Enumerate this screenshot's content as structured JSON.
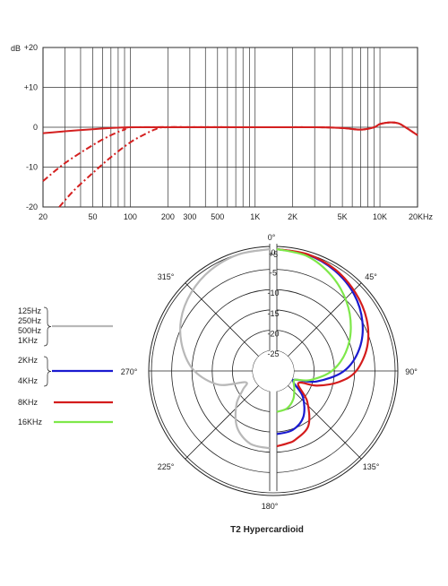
{
  "chart_data": [
    {
      "type": "line",
      "title": "",
      "ylabel_unit": "dB",
      "x_scale": "log",
      "xlim": [
        20,
        20000
      ],
      "ylim": [
        -20,
        20
      ],
      "x_ticks": [
        {
          "v": 20,
          "label": "20"
        },
        {
          "v": 50,
          "label": "50"
        },
        {
          "v": 100,
          "label": "100"
        },
        {
          "v": 200,
          "label": "200"
        },
        {
          "v": 300,
          "label": "300"
        },
        {
          "v": 500,
          "label": "500"
        },
        {
          "v": 1000,
          "label": "1K"
        },
        {
          "v": 2000,
          "label": "2K"
        },
        {
          "v": 5000,
          "label": "5K"
        },
        {
          "v": 10000,
          "label": "10K"
        },
        {
          "v": 20000,
          "label": "20KHz"
        }
      ],
      "y_ticks": [
        {
          "v": 20,
          "label": "+20"
        },
        {
          "v": 10,
          "label": "+10"
        },
        {
          "v": 0,
          "label": "0"
        },
        {
          "v": -10,
          "label": "-10"
        },
        {
          "v": -20,
          "label": "-20"
        }
      ],
      "grid": true,
      "series": [
        {
          "style": "solid",
          "color": "#d42020",
          "x": [
            20,
            30,
            50,
            70,
            100,
            200,
            1000,
            3000,
            5000,
            7000,
            9000,
            10000,
            12000,
            14000,
            16000,
            20000
          ],
          "y": [
            -1.5,
            -1.0,
            -0.5,
            -0.2,
            0,
            0,
            0,
            0,
            -0.2,
            -0.6,
            0,
            0.8,
            1.2,
            1.0,
            0,
            -2
          ]
        },
        {
          "style": "dashed",
          "color": "#d42020",
          "x": [
            20,
            30,
            50,
            70,
            90,
            110,
            1000,
            3000,
            5000,
            7000,
            9000,
            10000,
            12000,
            14000,
            16000,
            20000
          ],
          "y": [
            -13.5,
            -9.0,
            -4.5,
            -2.0,
            -0.6,
            0,
            0,
            0,
            -0.2,
            -0.6,
            0,
            0.8,
            1.2,
            1.0,
            0,
            -2
          ]
        },
        {
          "style": "dashed",
          "color": "#d42020",
          "x": [
            27,
            35,
            50,
            70,
            100,
            130,
            160,
            200,
            1000,
            3000,
            5000,
            7000,
            9000,
            10000,
            12000,
            14000,
            16000,
            20000
          ],
          "y": [
            -20,
            -16.0,
            -11.5,
            -7.5,
            -3.8,
            -1.8,
            -0.5,
            0,
            0,
            0,
            -0.2,
            -0.6,
            0,
            0.8,
            1.2,
            1.0,
            0,
            -2
          ]
        }
      ]
    },
    {
      "type": "polar",
      "title": "T2  Hypercardioid",
      "r_ticks": [
        "+5",
        "0",
        "-5",
        "-10",
        "-15",
        "-20",
        "-25"
      ],
      "angle_labels": [
        {
          "deg": 0,
          "label": "0°"
        },
        {
          "deg": 45,
          "label": "45°"
        },
        {
          "deg": 90,
          "label": "90°"
        },
        {
          "deg": 135,
          "label": "135°"
        },
        {
          "deg": 180,
          "label": "180°"
        },
        {
          "deg": 225,
          "label": "225°"
        },
        {
          "deg": 270,
          "label": "270°"
        },
        {
          "deg": 315,
          "label": "315°"
        }
      ],
      "series": [
        {
          "name": "125Hz\n250Hz\n500Hz\n1KHz",
          "color": "#b8b8b8",
          "side": "left",
          "angles": [
            0,
            15,
            30,
            45,
            60,
            75,
            90,
            105,
            115,
            125,
            135,
            150,
            165,
            180
          ],
          "db": [
            0,
            -0.3,
            -1.2,
            -2.7,
            -4.8,
            -7.8,
            -11.5,
            -17,
            -23.5,
            -22,
            -18.5,
            -14,
            -11.5,
            -11
          ]
        },
        {
          "name": "2KHz\n4KHz",
          "color": "#1a1ad0",
          "side": "right",
          "angles": [
            0,
            15,
            30,
            45,
            60,
            75,
            90,
            105,
            115,
            125,
            135,
            150,
            165,
            180
          ],
          "db": [
            0,
            -0.4,
            -1.5,
            -3.2,
            -5.7,
            -9.0,
            -13.5,
            -20,
            -25,
            -25,
            -21,
            -17,
            -15,
            -14.5
          ]
        },
        {
          "name": "8KHz",
          "color": "#d41c1c",
          "side": "right",
          "angles": [
            0,
            15,
            30,
            45,
            60,
            75,
            90,
            100,
            110,
            120,
            135,
            150,
            165,
            172,
            180
          ],
          "db": [
            0,
            -0.3,
            -1.2,
            -2.7,
            -4.5,
            -7.0,
            -10.5,
            -14.5,
            -19.5,
            -24,
            -19.5,
            -14.5,
            -12.5,
            -12,
            -11.5
          ]
        },
        {
          "name": "16KHz",
          "color": "#7ee84a",
          "side": "right",
          "angles": [
            0,
            15,
            30,
            45,
            60,
            75,
            90,
            105,
            115,
            125,
            135,
            150,
            165,
            180
          ],
          "db": [
            0,
            -0.8,
            -3.0,
            -5.8,
            -9.0,
            -12.5,
            -16.5,
            -21.5,
            -25,
            -25,
            -24,
            -22,
            -20.5,
            -20
          ]
        }
      ]
    }
  ]
}
